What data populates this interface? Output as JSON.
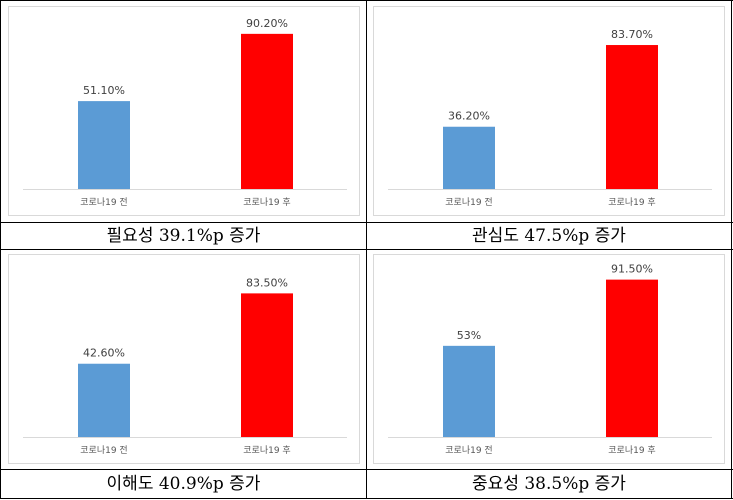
{
  "chart_data": [
    {
      "type": "bar",
      "categories": [
        "코로나19 전",
        "코로나19 후"
      ],
      "values": [
        51.1,
        90.2
      ],
      "labels": [
        "51.10%",
        "90.20%"
      ],
      "colors": [
        "#5b9bd5",
        "#ff0000"
      ],
      "ylim": [
        0,
        100
      ],
      "caption": "필요성 39.1%p 증가"
    },
    {
      "type": "bar",
      "categories": [
        "코로나19 전",
        "코로나19 후"
      ],
      "values": [
        36.2,
        83.7
      ],
      "labels": [
        "36.20%",
        "83.70%"
      ],
      "colors": [
        "#5b9bd5",
        "#ff0000"
      ],
      "ylim": [
        0,
        100
      ],
      "caption": "관심도 47.5%p 증가"
    },
    {
      "type": "bar",
      "categories": [
        "코로나19 전",
        "코로나19 후"
      ],
      "values": [
        42.6,
        83.5
      ],
      "labels": [
        "42.60%",
        "83.50%"
      ],
      "colors": [
        "#5b9bd5",
        "#ff0000"
      ],
      "ylim": [
        0,
        100
      ],
      "caption": "이해도 40.9%p 증가"
    },
    {
      "type": "bar",
      "categories": [
        "코로나19 전",
        "코로나19 후"
      ],
      "values": [
        53,
        91.5
      ],
      "labels": [
        "53%",
        "91.50%"
      ],
      "colors": [
        "#5b9bd5",
        "#ff0000"
      ],
      "ylim": [
        0,
        100
      ],
      "caption": "중요성 38.5%p 증가"
    }
  ]
}
